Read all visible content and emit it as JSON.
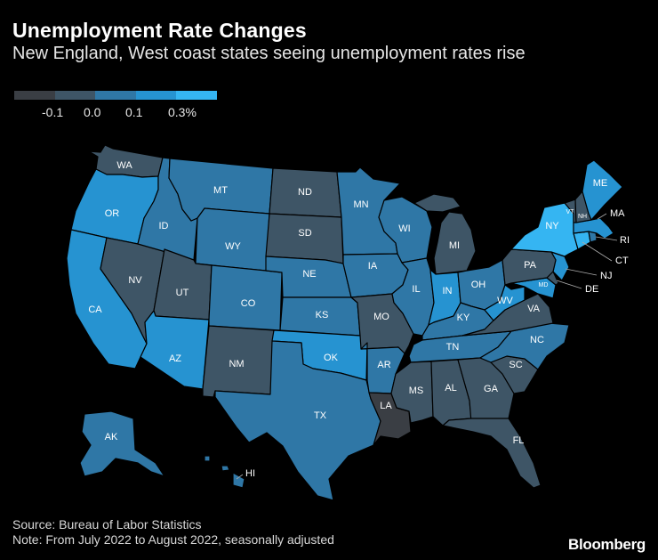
{
  "title": "Unemployment Rate Changes",
  "subtitle": "New England, West coast states seeing unemployment rates rise",
  "legend": {
    "colors": [
      "#3a3e44",
      "#3e5566",
      "#2f77a6",
      "#2693d1",
      "#35b5f2"
    ],
    "ticks": [
      "-0.1",
      "0.0",
      "0.1",
      "0.3%"
    ]
  },
  "chart_data": {
    "type": "choropleth",
    "metric": "Change in unemployment rate (percentage points)",
    "bins": [
      "< -0.1",
      "-0.1 to 0.0",
      "0.0 to 0.1",
      "0.1 to 0.3",
      "> 0.3"
    ],
    "states": {
      "WA": 1,
      "OR": 3,
      "CA": 3,
      "NV": 1,
      "ID": 2,
      "MT": 2,
      "WY": 2,
      "UT": 1,
      "AZ": 3,
      "CO": 2,
      "NM": 1,
      "ND": 1,
      "SD": 1,
      "NE": 2,
      "KS": 2,
      "OK": 3,
      "TX": 2,
      "MN": 2,
      "IA": 2,
      "MO": 1,
      "AR": 2,
      "LA": 0,
      "WI": 2,
      "IL": 2,
      "MI": 1,
      "IN": 3,
      "OH": 2,
      "KY": 2,
      "TN": 2,
      "MS": 1,
      "AL": 1,
      "GA": 1,
      "FL": 1,
      "SC": 1,
      "NC": 2,
      "VA": 1,
      "WV": 3,
      "MD": 3,
      "DE": 1,
      "NJ": 3,
      "PA": 1,
      "NY": 4,
      "CT": 4,
      "RI": 2,
      "MA": 3,
      "VT": 1,
      "NH": 1,
      "ME": 3,
      "AK": 2,
      "HI": 2
    }
  },
  "labels": {
    "WA": "WA",
    "OR": "OR",
    "CA": "CA",
    "NV": "NV",
    "ID": "ID",
    "MT": "MT",
    "WY": "WY",
    "UT": "UT",
    "AZ": "AZ",
    "CO": "CO",
    "NM": "NM",
    "ND": "ND",
    "SD": "SD",
    "NE": "NE",
    "KS": "KS",
    "OK": "OK",
    "TX": "TX",
    "MN": "MN",
    "IA": "IA",
    "MO": "MO",
    "AR": "AR",
    "LA": "LA",
    "WI": "WI",
    "IL": "IL",
    "MI": "MI",
    "IN": "IN",
    "OH": "OH",
    "KY": "KY",
    "TN": "TN",
    "MS": "MS",
    "AL": "AL",
    "GA": "GA",
    "FL": "FL",
    "SC": "SC",
    "NC": "NC",
    "VA": "VA",
    "WV": "WV",
    "MD": "MD",
    "DE": "DE",
    "NJ": "NJ",
    "PA": "PA",
    "NY": "NY",
    "CT": "CT",
    "RI": "RI",
    "MA": "MA",
    "VT": "VT",
    "NH": "NH",
    "ME": "ME",
    "AK": "AK",
    "HI": "HI"
  },
  "source": "Source: Bureau of Labor Statistics",
  "note": "Note: From July 2022 to August 2022, seasonally adjusted",
  "brand": "Bloomberg"
}
